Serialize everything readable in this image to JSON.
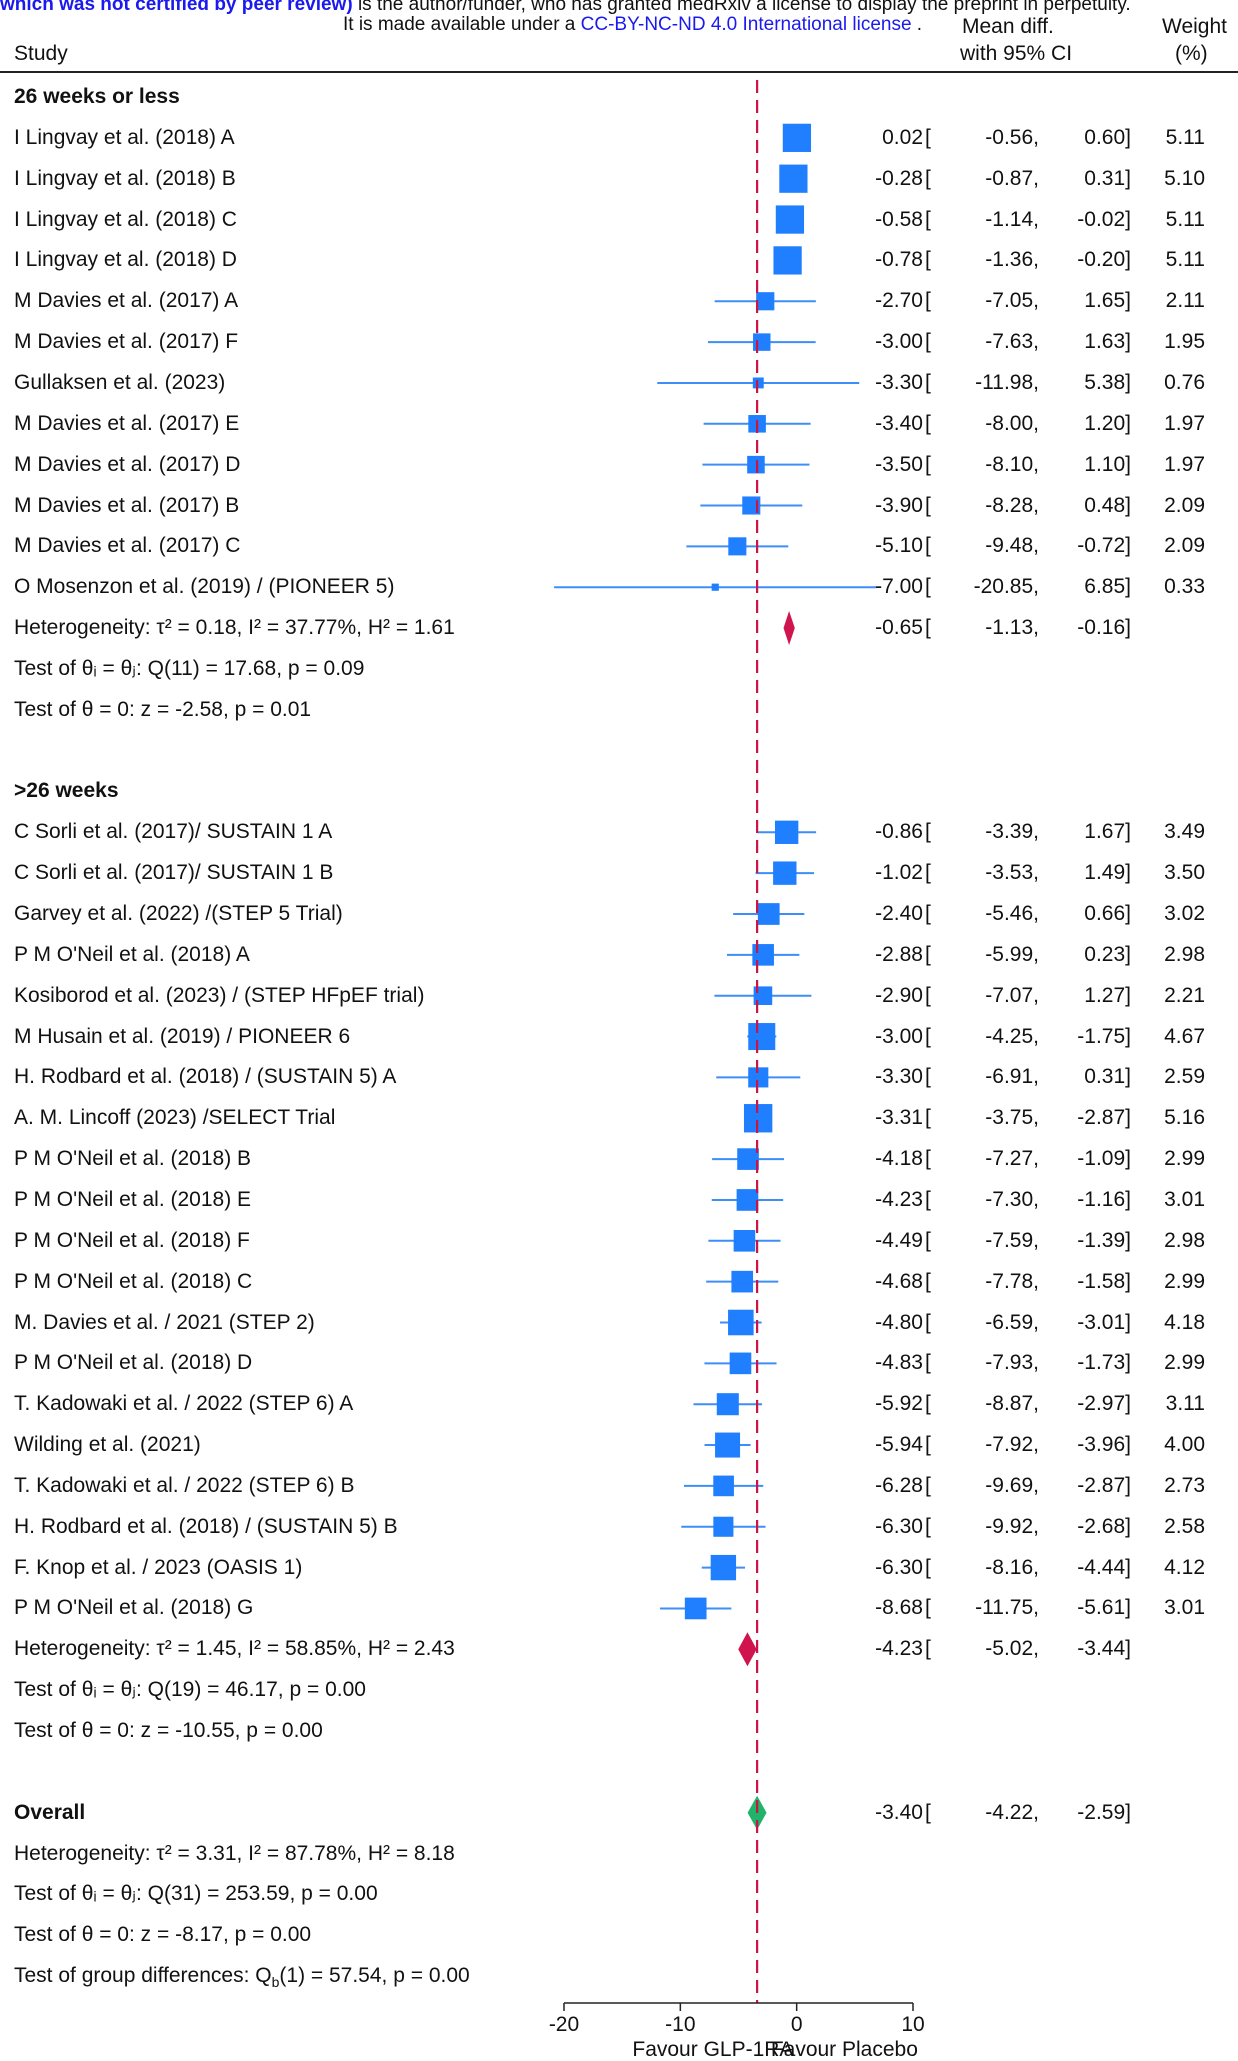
{
  "banner": {
    "line1_prefix": "which was not certified by peer review)",
    "line1_suffix": " is the author/funder, who has granted medRxiv a license to display the preprint in perpetuity.",
    "line2_prefix": "It is made available under a ",
    "line2_link": "CC-BY-NC-ND 4.0 International license",
    "line2_suffix": " ."
  },
  "headers": {
    "study": "Study",
    "effect_line1": "Mean diff.",
    "effect_line2": "with 95% CI",
    "weight_line1": "Weight",
    "weight_line2": "(%)"
  },
  "colors": {
    "square": "#1f7fff",
    "ci_line": "#3d8ef7",
    "subgroup_diamond": "#d0144e",
    "overall_diamond": "#21b36a",
    "ref_line": "#cc1444",
    "link": "#1a1aee"
  },
  "rows": [
    {
      "type": "group",
      "label": "26 weeks or less"
    },
    {
      "type": "study",
      "label": "I Lingvay et al. (2018) A",
      "md": "0.02",
      "lo": "-0.56",
      "hi": "0.60",
      "w": "5.11"
    },
    {
      "type": "study",
      "label": "I Lingvay et al. (2018) B",
      "md": "-0.28",
      "lo": "-0.87",
      "hi": "0.31",
      "w": "5.10"
    },
    {
      "type": "study",
      "label": "I Lingvay et al. (2018) C",
      "md": "-0.58",
      "lo": "-1.14",
      "hi": "-0.02",
      "w": "5.11"
    },
    {
      "type": "study",
      "label": "I Lingvay et al. (2018) D",
      "md": "-0.78",
      "lo": "-1.36",
      "hi": "-0.20",
      "w": "5.11"
    },
    {
      "type": "study",
      "label": "M Davies et al. (2017) A",
      "md": "-2.70",
      "lo": "-7.05",
      "hi": "1.65",
      "w": "2.11"
    },
    {
      "type": "study",
      "label": "M Davies et al. (2017) F",
      "md": "-3.00",
      "lo": "-7.63",
      "hi": "1.63",
      "w": "1.95"
    },
    {
      "type": "study",
      "label": "Gullaksen et al. (2023)",
      "md": "-3.30",
      "lo": "-11.98",
      "hi": "5.38",
      "w": "0.76"
    },
    {
      "type": "study",
      "label": "M Davies et al. (2017) E",
      "md": "-3.40",
      "lo": "-8.00",
      "hi": "1.20",
      "w": "1.97"
    },
    {
      "type": "study",
      "label": "M Davies et al. (2017) D",
      "md": "-3.50",
      "lo": "-8.10",
      "hi": "1.10",
      "w": "1.97"
    },
    {
      "type": "study",
      "label": "M Davies et al. (2017) B",
      "md": "-3.90",
      "lo": "-8.28",
      "hi": "0.48",
      "w": "2.09"
    },
    {
      "type": "study",
      "label": "M Davies et al. (2017) C",
      "md": "-5.10",
      "lo": "-9.48",
      "hi": "-0.72",
      "w": "2.09"
    },
    {
      "type": "study",
      "label": "O Mosenzon et al. (2019) / (PIONEER 5)",
      "md": "-7.00",
      "lo": "-20.85",
      "hi": "6.85",
      "w": "0.33"
    },
    {
      "type": "subtotal",
      "label": "Heterogeneity: τ² = 0.18, I² = 37.77%, H² = 1.61",
      "md": "-0.65",
      "lo": "-1.13",
      "hi": "-0.16",
      "diamond": "subgroup"
    },
    {
      "type": "text",
      "label": "Test of θᵢ = θⱼ: Q(11) = 17.68, p = 0.09"
    },
    {
      "type": "text",
      "label": "Test of θ = 0: z = -2.58, p = 0.01"
    },
    {
      "type": "blank"
    },
    {
      "type": "group",
      "label": ">26 weeks"
    },
    {
      "type": "study",
      "label": "C Sorli et al. (2017)/ SUSTAIN 1 A",
      "md": "-0.86",
      "lo": "-3.39",
      "hi": "1.67",
      "w": "3.49"
    },
    {
      "type": "study",
      "label": "C Sorli et al. (2017)/ SUSTAIN 1 B",
      "md": "-1.02",
      "lo": "-3.53",
      "hi": "1.49",
      "w": "3.50"
    },
    {
      "type": "study",
      "label": "Garvey et al. (2022) /(STEP 5 Trial)",
      "md": "-2.40",
      "lo": "-5.46",
      "hi": "0.66",
      "w": "3.02"
    },
    {
      "type": "study",
      "label": "P M O'Neil et al. (2018) A",
      "md": "-2.88",
      "lo": "-5.99",
      "hi": "0.23",
      "w": "2.98"
    },
    {
      "type": "study",
      "label": "Kosiborod et al. (2023) / (STEP HFpEF trial)",
      "md": "-2.90",
      "lo": "-7.07",
      "hi": "1.27",
      "w": "2.21"
    },
    {
      "type": "study",
      "label": "M Husain et al. (2019) / PIONEER 6",
      "md": "-3.00",
      "lo": "-4.25",
      "hi": "-1.75",
      "w": "4.67"
    },
    {
      "type": "study",
      "label": "H. Rodbard et al. (2018) / (SUSTAIN 5) A",
      "md": "-3.30",
      "lo": "-6.91",
      "hi": "0.31",
      "w": "2.59"
    },
    {
      "type": "study",
      "label": "A. M. Lincoff (2023) /SELECT Trial",
      "md": "-3.31",
      "lo": "-3.75",
      "hi": "-2.87",
      "w": "5.16"
    },
    {
      "type": "study",
      "label": "P M O'Neil et al. (2018) B",
      "md": "-4.18",
      "lo": "-7.27",
      "hi": "-1.09",
      "w": "2.99"
    },
    {
      "type": "study",
      "label": "P M O'Neil et al. (2018) E",
      "md": "-4.23",
      "lo": "-7.30",
      "hi": "-1.16",
      "w": "3.01"
    },
    {
      "type": "study",
      "label": "P M O'Neil et al. (2018) F",
      "md": "-4.49",
      "lo": "-7.59",
      "hi": "-1.39",
      "w": "2.98"
    },
    {
      "type": "study",
      "label": "P M O'Neil et al. (2018) C",
      "md": "-4.68",
      "lo": "-7.78",
      "hi": "-1.58",
      "w": "2.99"
    },
    {
      "type": "study",
      "label": "M. Davies et al. / 2021 (STEP 2)",
      "md": "-4.80",
      "lo": "-6.59",
      "hi": "-3.01",
      "w": "4.18"
    },
    {
      "type": "study",
      "label": "P M O'Neil et al. (2018) D",
      "md": "-4.83",
      "lo": "-7.93",
      "hi": "-1.73",
      "w": "2.99"
    },
    {
      "type": "study",
      "label": "T. Kadowaki et al. / 2022 (STEP 6) A",
      "md": "-5.92",
      "lo": "-8.87",
      "hi": "-2.97",
      "w": "3.11"
    },
    {
      "type": "study",
      "label": "Wilding et al.  (2021)",
      "md": "-5.94",
      "lo": "-7.92",
      "hi": "-3.96",
      "w": "4.00"
    },
    {
      "type": "study",
      "label": "T. Kadowaki et al. / 2022 (STEP 6) B",
      "md": "-6.28",
      "lo": "-9.69",
      "hi": "-2.87",
      "w": "2.73"
    },
    {
      "type": "study",
      "label": "H. Rodbard et al. (2018) / (SUSTAIN 5) B",
      "md": "-6.30",
      "lo": "-9.92",
      "hi": "-2.68",
      "w": "2.58"
    },
    {
      "type": "study",
      "label": "F. Knop et al. / 2023 (OASIS 1)",
      "md": "-6.30",
      "lo": "-8.16",
      "hi": "-4.44",
      "w": "4.12"
    },
    {
      "type": "study",
      "label": "P M O'Neil et al. (2018) G",
      "md": "-8.68",
      "lo": "-11.75",
      "hi": "-5.61",
      "w": "3.01"
    },
    {
      "type": "subtotal",
      "label": "Heterogeneity: τ² = 1.45, I² = 58.85%, H² = 2.43",
      "md": "-4.23",
      "lo": "-5.02",
      "hi": "-3.44",
      "diamond": "subgroup"
    },
    {
      "type": "text",
      "label": "Test of θᵢ = θⱼ: Q(19) = 46.17, p = 0.00"
    },
    {
      "type": "text",
      "label": "Test of θ = 0: z = -10.55, p = 0.00"
    },
    {
      "type": "blank"
    },
    {
      "type": "overall",
      "label": "Overall",
      "md": "-3.40",
      "lo": "-4.22",
      "hi": "-2.59",
      "diamond": "overall"
    },
    {
      "type": "text",
      "label": "Heterogeneity: τ² = 3.31, I² = 87.78%, H² = 8.18"
    },
    {
      "type": "text",
      "label": "Test of θᵢ = θⱼ: Q(31) = 253.59, p = 0.00"
    },
    {
      "type": "text",
      "label": "Test of θ = 0: z = -8.17, p = 0.00"
    },
    {
      "type": "text",
      "label": "Test of group differences: Q_b(1) = 57.54, p = 0.00"
    }
  ],
  "chart_data": {
    "type": "forest",
    "x_axis": {
      "ticks": [
        -20,
        -10,
        0,
        10
      ],
      "range": [
        -20,
        10
      ],
      "left_label": "Favour GLP-1RA",
      "right_label": "Favour Placebo"
    },
    "reference_line": -3.4,
    "null_line": 0
  }
}
